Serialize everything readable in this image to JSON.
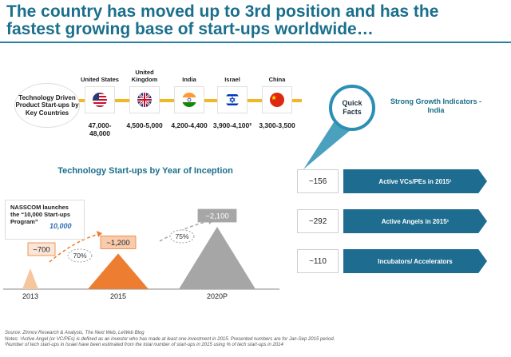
{
  "header": {
    "title": "The country has moved up to 3rd position and has the fastest growing base of start-ups worldwide…"
  },
  "countries_section": {
    "label": "Technology Driven Product Start-ups by Key Countries",
    "countries": [
      {
        "name": "United States",
        "count": "47,000-48,000",
        "flag_icon": "us-flag-icon"
      },
      {
        "name": "United Kingdom",
        "count": "4,500-5,000",
        "flag_icon": "uk-flag-icon"
      },
      {
        "name": "India",
        "count": "4,200-4,400",
        "flag_icon": "india-flag-icon"
      },
      {
        "name": "Israel",
        "count": "3,900-4,100²",
        "flag_icon": "israel-flag-icon"
      },
      {
        "name": "China",
        "count": "3,300-3,500",
        "flag_icon": "china-flag-icon"
      }
    ],
    "bar_color": "#f2b824"
  },
  "quick_facts": {
    "badge": "Quick Facts",
    "heading": "Strong Growth Indicators - India",
    "facts": [
      {
        "value": "~156",
        "label": "Active VCs/PEs in 2015¹"
      },
      {
        "value": "~292",
        "label": "Active Angels in 2015¹"
      },
      {
        "value": "~110",
        "label": "Incubators/ Accelerators"
      }
    ],
    "accent": "#1e6d91"
  },
  "inception_chart": {
    "title": "Technology Start-ups by Year of Inception",
    "callout": "NASSCOM launches the “10,000 Start-ups Program”",
    "logo_text": "10,000",
    "growth_labels": [
      "70%",
      "75%"
    ]
  },
  "chart_data": {
    "type": "area",
    "title": "Technology Start-ups by Year of Inception",
    "categories": [
      "2013",
      "2015",
      "2020P"
    ],
    "values": [
      700,
      1200,
      2100
    ],
    "value_labels": [
      "~700",
      "~1,200",
      "~2,100"
    ],
    "growth": [
      "70%",
      "75%"
    ],
    "colors": [
      "#f6c79e",
      "#ed7d31",
      "#a6a6a6"
    ]
  },
  "source": {
    "line1": "Source: Zinnov Research & Analysis, The Next Web, LeWeb Blog",
    "line2": "Notes: ¹Active Angel (or VC/PEs) is defined as an investor who has made at least one investment in 2015. Presented numbers are for Jan-Sep 2015 period.",
    "line3": "²Number of tech start-ups in Israel have been estimated from the total number of start-ups in 2015 using % of tech start-ups in 2014"
  }
}
